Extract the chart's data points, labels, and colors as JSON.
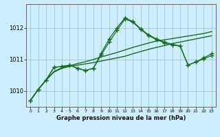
{
  "xlabel": "Graphe pression niveau de la mer (hPa)",
  "bg_color": "#cceeff",
  "grid_color": "#99cccc",
  "xlim": [
    -0.5,
    23.5
  ],
  "ylim": [
    1009.5,
    1012.75
  ],
  "yticks": [
    1010,
    1011,
    1012
  ],
  "xticks": [
    0,
    1,
    2,
    3,
    4,
    5,
    6,
    7,
    8,
    9,
    10,
    11,
    12,
    13,
    14,
    15,
    16,
    17,
    18,
    19,
    20,
    21,
    22,
    23
  ],
  "series": [
    {
      "x": [
        0,
        1,
        2,
        3,
        4,
        5,
        6,
        7,
        8,
        9,
        10,
        11,
        12,
        13,
        14,
        15,
        16,
        17,
        18,
        19,
        20,
        21,
        22,
        23
      ],
      "y": [
        1009.7,
        1010.05,
        1010.35,
        1010.6,
        1010.72,
        1010.78,
        1010.82,
        1010.86,
        1010.9,
        1010.95,
        1011.0,
        1011.05,
        1011.1,
        1011.18,
        1011.25,
        1011.32,
        1011.38,
        1011.44,
        1011.5,
        1011.55,
        1011.6,
        1011.65,
        1011.7,
        1011.75
      ],
      "color": "#1a6b1a",
      "marker": null,
      "linewidth": 1.0,
      "linestyle": "-"
    },
    {
      "x": [
        0,
        1,
        2,
        3,
        4,
        5,
        6,
        7,
        8,
        9,
        10,
        11,
        12,
        13,
        14,
        15,
        16,
        17,
        18,
        19,
        20,
        21,
        22,
        23
      ],
      "y": [
        1009.7,
        1010.05,
        1010.35,
        1010.62,
        1010.74,
        1010.8,
        1010.87,
        1010.93,
        1011.0,
        1011.08,
        1011.15,
        1011.22,
        1011.3,
        1011.38,
        1011.45,
        1011.52,
        1011.58,
        1011.62,
        1011.66,
        1011.7,
        1011.74,
        1011.78,
        1011.82,
        1011.88
      ],
      "color": "#1a6b1a",
      "marker": null,
      "linewidth": 1.0,
      "linestyle": "-"
    },
    {
      "x": [
        0,
        1,
        2,
        3,
        4,
        5,
        6,
        7,
        8,
        9,
        10,
        11,
        12,
        13,
        14,
        15,
        16,
        17,
        18,
        19,
        20,
        21,
        22,
        23
      ],
      "y": [
        1009.7,
        1010.05,
        1010.35,
        1010.75,
        1010.78,
        1010.82,
        1010.72,
        1010.65,
        1010.72,
        1011.15,
        1011.55,
        1011.92,
        1012.28,
        1012.18,
        1011.95,
        1011.75,
        1011.63,
        1011.52,
        1011.46,
        1011.42,
        1010.82,
        1010.92,
        1011.02,
        1011.12
      ],
      "color": "#1a6b1a",
      "marker": "+",
      "markersize": 4,
      "linewidth": 0.9,
      "linestyle": "-"
    },
    {
      "x": [
        0,
        1,
        2,
        3,
        4,
        5,
        6,
        7,
        8,
        9,
        10,
        11,
        12,
        13,
        14,
        15,
        16,
        17,
        18,
        19,
        20,
        21,
        22,
        23
      ],
      "y": [
        1009.7,
        1010.05,
        1010.35,
        1010.75,
        1010.78,
        1010.82,
        1010.72,
        1010.65,
        1010.72,
        1011.2,
        1011.65,
        1012.0,
        1012.32,
        1012.2,
        1011.97,
        1011.78,
        1011.65,
        1011.55,
        1011.48,
        1011.43,
        1010.82,
        1010.92,
        1011.05,
        1011.18
      ],
      "color": "#1a6b1a",
      "marker": "+",
      "markersize": 4,
      "linewidth": 0.9,
      "linestyle": "-"
    }
  ]
}
